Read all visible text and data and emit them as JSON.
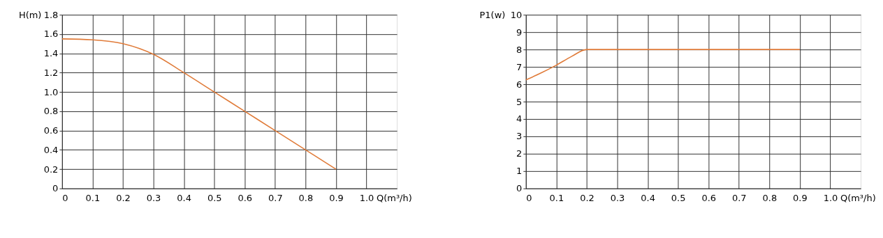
{
  "chart_data": [
    {
      "type": "line",
      "xlabel": "Q(m³/h)",
      "ylabel": "H(m)",
      "x": [
        0,
        0.1,
        0.2,
        0.3,
        0.4,
        0.5,
        0.6,
        0.7,
        0.8,
        0.9
      ],
      "series": [
        {
          "color": "#e07b39",
          "values": [
            1.55,
            1.54,
            1.5,
            1.39,
            1.2,
            1.0,
            0.8,
            0.6,
            0.4,
            0.2
          ]
        }
      ],
      "xlim": [
        0,
        1.1
      ],
      "xticks": [
        0,
        0.1,
        0.2,
        0.3,
        0.4,
        0.5,
        0.6,
        0.7,
        0.8,
        0.9,
        {
          "value": 1.0,
          "label": "1.0"
        }
      ],
      "ylim": [
        0,
        1.8
      ],
      "yticks": [
        0,
        0.2,
        0.4,
        0.6,
        0.8,
        {
          "value": 1.0,
          "label": "1.0"
        },
        1.2,
        1.4,
        1.6,
        1.8
      ],
      "grid": true,
      "marker": "none",
      "line_style": "solid"
    },
    {
      "type": "line",
      "xlabel": "Q(m³/h)",
      "ylabel": "P1(w)",
      "x": [
        0,
        0.05,
        0.1,
        0.15,
        0.2,
        0.3,
        0.5,
        0.7,
        0.9
      ],
      "series": [
        {
          "color": "#e07b39",
          "values": [
            6.25,
            6.65,
            7.1,
            7.6,
            8.0,
            8.0,
            8.0,
            8.0,
            8.0
          ]
        }
      ],
      "xlim": [
        0,
        1.1
      ],
      "xticks": [
        0,
        0.1,
        0.2,
        0.3,
        0.4,
        0.5,
        0.6,
        0.7,
        0.8,
        0.9,
        {
          "value": 1.0,
          "label": "1.0"
        }
      ],
      "ylim": [
        0,
        10
      ],
      "yticks": [
        0,
        1,
        2,
        3,
        4,
        5,
        6,
        7,
        8,
        9,
        10
      ],
      "grid": true,
      "marker": "none",
      "line_style": "solid"
    }
  ]
}
